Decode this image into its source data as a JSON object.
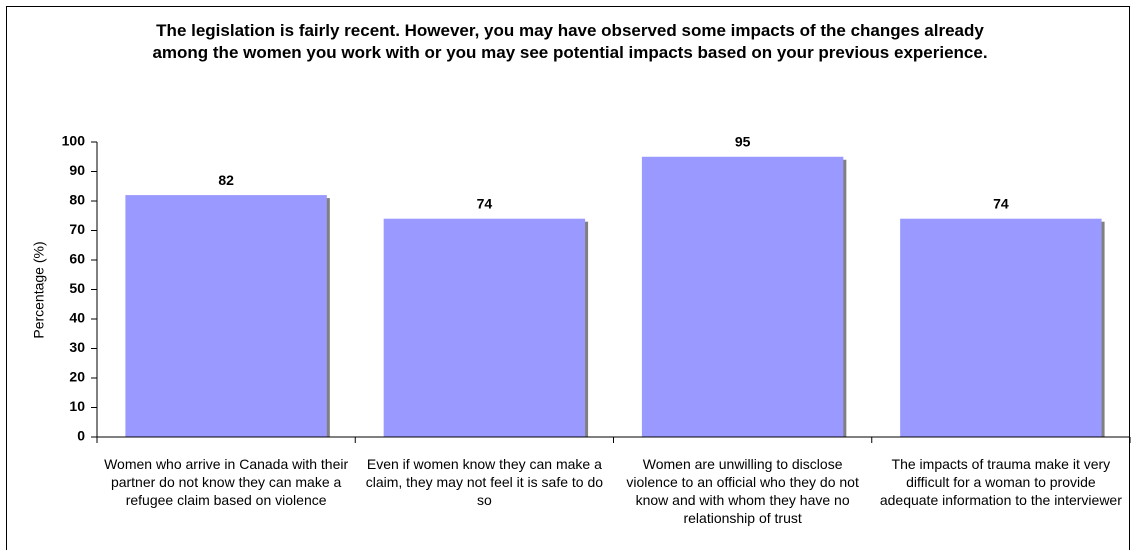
{
  "chart_data": {
    "type": "bar",
    "title": "The legislation is fairly recent. However, you may have observed some impacts of the changes already among the women you work with or you may see potential impacts based on your previous experience.",
    "y_label": "Percentage (%)",
    "categories": [
      "Women who arrive in Canada with their partner do not know they can make a refugee claim based on violence",
      "Even if women know they can make a claim, they may not feel it is safe to do so",
      "Women are unwilling to disclose violence to an official who they do not know and with whom they have no relationship of trust",
      "The impacts of trauma make it very difficult for a woman to provide adequate information to the interviewer"
    ],
    "values": [
      82,
      74,
      95,
      74
    ],
    "color": "#9999ff",
    "ylim": [
      0,
      100
    ],
    "yticks": [
      0,
      10,
      20,
      30,
      40,
      50,
      60,
      70,
      80,
      90,
      100
    ],
    "grid": false
  }
}
